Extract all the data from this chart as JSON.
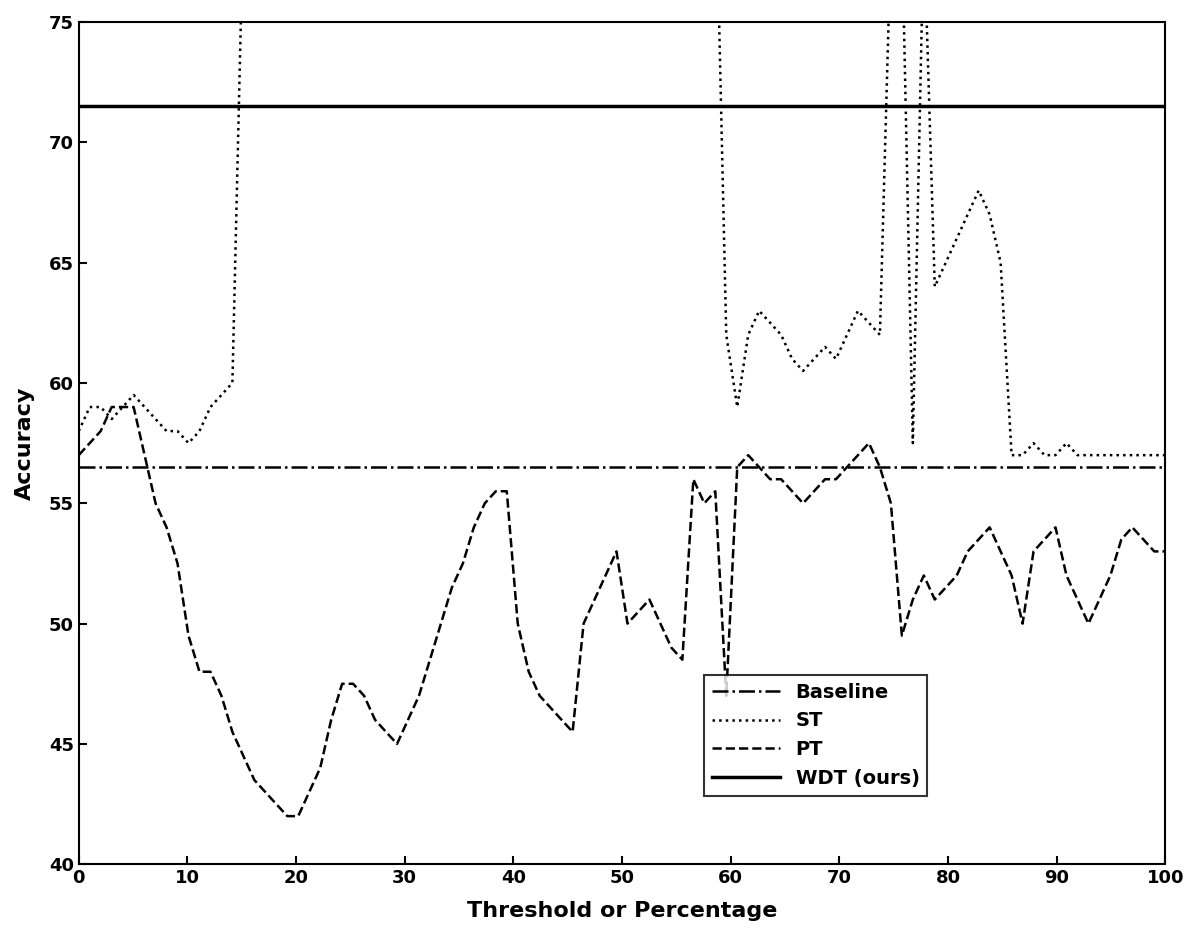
{
  "title": "",
  "xlabel": "Threshold or Percentage",
  "ylabel": "Accuracy",
  "xlim": [
    0,
    100
  ],
  "ylim": [
    40,
    75
  ],
  "yticks": [
    40,
    45,
    50,
    55,
    60,
    65,
    70,
    75
  ],
  "xticks": [
    0,
    10,
    20,
    30,
    40,
    50,
    60,
    70,
    80,
    90,
    100
  ],
  "baseline_value": 56.5,
  "wdt_value": 71.5,
  "background_color": "#ffffff",
  "st_y": [
    58,
    59,
    59,
    58.5,
    59,
    59.5,
    59,
    58.5,
    58,
    58,
    57.5,
    58,
    59,
    59.5,
    60,
    79.5,
    80,
    80.5,
    80,
    79.5,
    79,
    79.5,
    80,
    81,
    83,
    82.5,
    81.5,
    80.5,
    79.5,
    79,
    79,
    79.5,
    80.5,
    80,
    80.5,
    81,
    81.5,
    82,
    82.5,
    83.5,
    83.5,
    84.5,
    85,
    83.5,
    82,
    81,
    80.5,
    80.5,
    80,
    80,
    80,
    80.5,
    81,
    81,
    80,
    79.5,
    80,
    81,
    82,
    62,
    59,
    62,
    63,
    62.5,
    62,
    61,
    60.5,
    61,
    61.5,
    61,
    62,
    63,
    62.5,
    62,
    78.5,
    79,
    57.5,
    79,
    64,
    65,
    66,
    67,
    68,
    67,
    65,
    57,
    57,
    57.5,
    57,
    57,
    57.5,
    57,
    57,
    57,
    57,
    57,
    57,
    57,
    57,
    57
  ],
  "pt_y": [
    57,
    57.5,
    58,
    59,
    59,
    59,
    57,
    55,
    54,
    52.5,
    49.5,
    48,
    48,
    47,
    45.5,
    44.5,
    43.5,
    43,
    42.5,
    42,
    42,
    43,
    44,
    46,
    47.5,
    47.5,
    47,
    46,
    45.5,
    45,
    46,
    47,
    48.5,
    50,
    51.5,
    52.5,
    54,
    55,
    55.5,
    55.5,
    50,
    48,
    47,
    46.5,
    46,
    45.5,
    50,
    51,
    52,
    53,
    50,
    50.5,
    51,
    50,
    49,
    48.5,
    56,
    55,
    55.5,
    47,
    56.5,
    57,
    56.5,
    56,
    56,
    55.5,
    55,
    55.5,
    56,
    56,
    56.5,
    57,
    57.5,
    56.5,
    55,
    49.5,
    51,
    52,
    51,
    51.5,
    52,
    53,
    53.5,
    54,
    53,
    52,
    50,
    53,
    53.5,
    54,
    52,
    51,
    50,
    51,
    52,
    53.5,
    54,
    53.5,
    53,
    53
  ]
}
